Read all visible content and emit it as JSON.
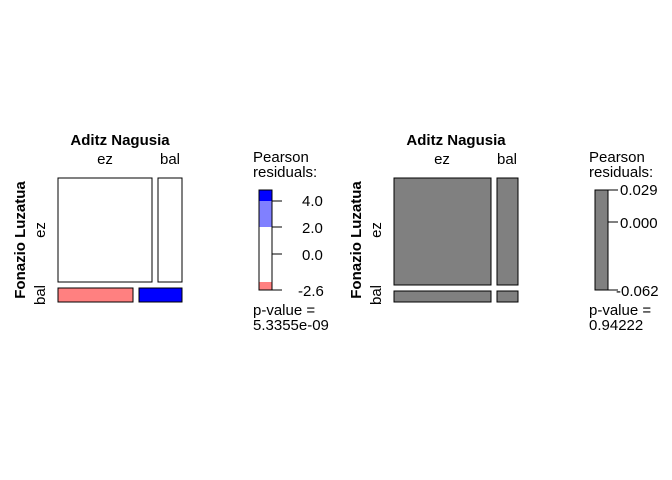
{
  "chart_data": [
    {
      "type": "mosaic",
      "title": "",
      "xlabel": "Aditz Nagusia",
      "ylabel": "Fonazio Luzatua",
      "x_categories": [
        "ez",
        "bal"
      ],
      "y_categories": [
        "ez",
        "bal"
      ],
      "column_proportions": [
        0.74,
        0.26
      ],
      "row_proportions": {
        "ez": [
          0.87,
          0.13
        ],
        "bal": [
          0.97,
          0.03
        ]
      },
      "residual_shading": {
        "ez|ez": "none",
        "ez|bal": "none",
        "bal|ez": "negative",
        "bal|bal": "positive"
      },
      "legend": {
        "title": [
          "Pearson",
          "residuals:"
        ],
        "ticks": [
          "4.0",
          "2.0",
          "0.0",
          "-2.6"
        ],
        "tick_values": [
          4.0,
          2.0,
          0.0,
          -2.6
        ],
        "range": [
          -2.6,
          5.0
        ],
        "bands": [
          {
            "from": 4.0,
            "to": 5.0,
            "color": "#0000ff"
          },
          {
            "from": 2.0,
            "to": 4.0,
            "color": "#8080ff"
          },
          {
            "from": -2.0,
            "to": 2.0,
            "color": "#ffffff"
          },
          {
            "from": -2.6,
            "to": -2.0,
            "color": "#ff8080"
          }
        ],
        "pvalue_label": "p-value =",
        "pvalue": "5.3355e-09"
      }
    },
    {
      "type": "mosaic",
      "title": "",
      "xlabel": "Aditz Nagusia",
      "ylabel": "Fonazio Luzatua",
      "x_categories": [
        "ez",
        "bal"
      ],
      "y_categories": [
        "ez",
        "bal"
      ],
      "column_proportions": [
        0.795,
        0.205
      ],
      "row_proportions": {
        "ez": [
          0.895,
          0.105
        ],
        "bal": [
          0.895,
          0.105
        ]
      },
      "residual_shading": {
        "ez|ez": "gray",
        "ez|bal": "gray",
        "bal|ez": "gray",
        "bal|bal": "gray"
      },
      "legend": {
        "title": [
          "Pearson",
          "residuals:"
        ],
        "ticks": [
          "0.029",
          "0.000",
          "-0.062"
        ],
        "tick_values": [
          0.029,
          0.0,
          -0.062
        ],
        "range": [
          -0.062,
          0.029
        ],
        "bands": [
          {
            "from": -0.062,
            "to": 0.029,
            "color": "#808080"
          }
        ],
        "pvalue_label": "p-value =",
        "pvalue": "0.94222"
      }
    }
  ],
  "colors": {
    "gray": "#808080",
    "positive": "#0000ff",
    "negative": "#ff8080",
    "none": "#ffffff"
  }
}
